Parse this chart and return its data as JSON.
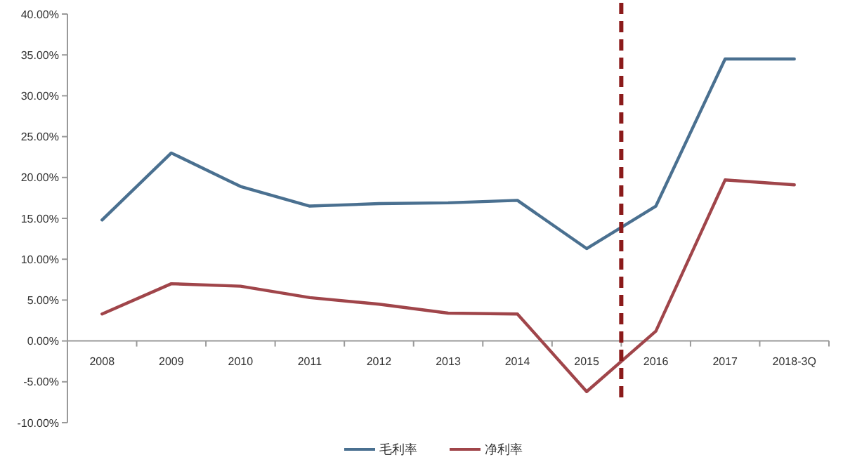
{
  "chart_data": {
    "type": "line",
    "categories": [
      "2008",
      "2009",
      "2010",
      "2011",
      "2012",
      "2013",
      "2014",
      "2015",
      "2016",
      "2017",
      "2018-3Q"
    ],
    "series": [
      {
        "name": "毛利率",
        "color": "#4a7090",
        "values": [
          14.8,
          23.0,
          18.9,
          16.5,
          16.8,
          16.9,
          17.2,
          11.3,
          16.5,
          34.5,
          34.5
        ]
      },
      {
        "name": "净利率",
        "color": "#a0454a",
        "values": [
          3.3,
          7.0,
          6.7,
          5.3,
          4.5,
          3.4,
          3.3,
          -6.2,
          1.2,
          19.7,
          19.1
        ]
      }
    ],
    "ylim": [
      -10,
      40
    ],
    "yticks": [
      {
        "value": -10,
        "label": "-10.00%"
      },
      {
        "value": -5,
        "label": "-5.00%"
      },
      {
        "value": 0,
        "label": "0.00%"
      },
      {
        "value": 5,
        "label": "5.00%"
      },
      {
        "value": 10,
        "label": "10.00%"
      },
      {
        "value": 15,
        "label": "15.00%"
      },
      {
        "value": 20,
        "label": "20.00%"
      },
      {
        "value": 25,
        "label": "25.00%"
      },
      {
        "value": 30,
        "label": "30.00%"
      },
      {
        "value": 35,
        "label": "35.00%"
      },
      {
        "value": 40,
        "label": "40.00%"
      }
    ],
    "grid": false,
    "legend": "bottom",
    "line_style": "solid"
  }
}
